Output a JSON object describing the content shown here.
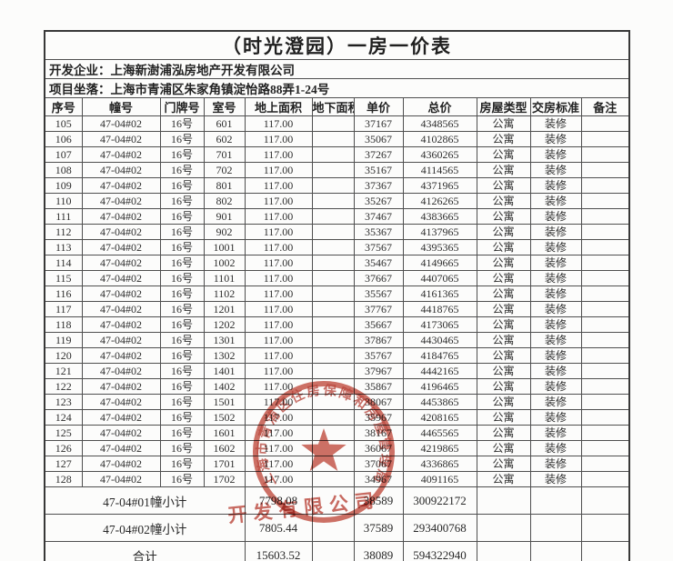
{
  "title": "（时光澄园）一房一价表",
  "info_rows": [
    {
      "label": "开发企业：",
      "value": "上海新澍浦泓房地产开发有限公司"
    },
    {
      "label": "项目坐落：",
      "value": "上海市青浦区朱家角镇淀怡路88弄1-24号"
    }
  ],
  "table": {
    "headers": [
      "序号",
      "幢号",
      "门牌号",
      "室号",
      "地上面积",
      "地下面积",
      "单价",
      "总价",
      "房屋类型",
      "交房标准",
      "备注"
    ],
    "rows": [
      [
        "105",
        "47-04#02",
        "16号",
        "601",
        "117.00",
        "",
        "37167",
        "4348565",
        "公寓",
        "装修",
        ""
      ],
      [
        "106",
        "47-04#02",
        "16号",
        "602",
        "117.00",
        "",
        "35067",
        "4102865",
        "公寓",
        "装修",
        ""
      ],
      [
        "107",
        "47-04#02",
        "16号",
        "701",
        "117.00",
        "",
        "37267",
        "4360265",
        "公寓",
        "装修",
        ""
      ],
      [
        "108",
        "47-04#02",
        "16号",
        "702",
        "117.00",
        "",
        "35167",
        "4114565",
        "公寓",
        "装修",
        ""
      ],
      [
        "109",
        "47-04#02",
        "16号",
        "801",
        "117.00",
        "",
        "37367",
        "4371965",
        "公寓",
        "装修",
        ""
      ],
      [
        "110",
        "47-04#02",
        "16号",
        "802",
        "117.00",
        "",
        "35267",
        "4126265",
        "公寓",
        "装修",
        ""
      ],
      [
        "111",
        "47-04#02",
        "16号",
        "901",
        "117.00",
        "",
        "37467",
        "4383665",
        "公寓",
        "装修",
        ""
      ],
      [
        "112",
        "47-04#02",
        "16号",
        "902",
        "117.00",
        "",
        "35367",
        "4137965",
        "公寓",
        "装修",
        ""
      ],
      [
        "113",
        "47-04#02",
        "16号",
        "1001",
        "117.00",
        "",
        "37567",
        "4395365",
        "公寓",
        "装修",
        ""
      ],
      [
        "114",
        "47-04#02",
        "16号",
        "1002",
        "117.00",
        "",
        "35467",
        "4149665",
        "公寓",
        "装修",
        ""
      ],
      [
        "115",
        "47-04#02",
        "16号",
        "1101",
        "117.00",
        "",
        "37667",
        "4407065",
        "公寓",
        "装修",
        ""
      ],
      [
        "116",
        "47-04#02",
        "16号",
        "1102",
        "117.00",
        "",
        "35567",
        "4161365",
        "公寓",
        "装修",
        ""
      ],
      [
        "117",
        "47-04#02",
        "16号",
        "1201",
        "117.00",
        "",
        "37767",
        "4418765",
        "公寓",
        "装修",
        ""
      ],
      [
        "118",
        "47-04#02",
        "16号",
        "1202",
        "117.00",
        "",
        "35667",
        "4173065",
        "公寓",
        "装修",
        ""
      ],
      [
        "119",
        "47-04#02",
        "16号",
        "1301",
        "117.00",
        "",
        "37867",
        "4430465",
        "公寓",
        "装修",
        ""
      ],
      [
        "120",
        "47-04#02",
        "16号",
        "1302",
        "117.00",
        "",
        "35767",
        "4184765",
        "公寓",
        "装修",
        ""
      ],
      [
        "121",
        "47-04#02",
        "16号",
        "1401",
        "117.00",
        "",
        "37967",
        "4442165",
        "公寓",
        "装修",
        ""
      ],
      [
        "122",
        "47-04#02",
        "16号",
        "1402",
        "117.00",
        "",
        "35867",
        "4196465",
        "公寓",
        "装修",
        ""
      ],
      [
        "123",
        "47-04#02",
        "16号",
        "1501",
        "117.00",
        "",
        "38067",
        "4453865",
        "公寓",
        "装修",
        ""
      ],
      [
        "124",
        "47-04#02",
        "16号",
        "1502",
        "117.00",
        "",
        "35967",
        "4208165",
        "公寓",
        "装修",
        ""
      ],
      [
        "125",
        "47-04#02",
        "16号",
        "1601",
        "117.00",
        "",
        "38167",
        "4465565",
        "公寓",
        "装修",
        ""
      ],
      [
        "126",
        "47-04#02",
        "16号",
        "1602",
        "117.00",
        "",
        "36067",
        "4219865",
        "公寓",
        "装修",
        ""
      ],
      [
        "127",
        "47-04#02",
        "16号",
        "1701",
        "117.00",
        "",
        "37067",
        "4336865",
        "公寓",
        "装修",
        ""
      ],
      [
        "128",
        "47-04#02",
        "16号",
        "1702",
        "117.00",
        "",
        "34967",
        "4091165",
        "公寓",
        "装修",
        ""
      ]
    ],
    "summary_rows": [
      {
        "label": "47-04#01幢小计",
        "above_area": "7798.08",
        "below_area": "",
        "unit_price": "38589",
        "total_price": "300922172",
        "house_type": "",
        "delivery": "",
        "remark": ""
      },
      {
        "label": "47-04#02幢小计",
        "above_area": "7805.44",
        "below_area": "",
        "unit_price": "37589",
        "total_price": "293400768",
        "house_type": "",
        "delivery": "",
        "remark": ""
      },
      {
        "label": "合计",
        "above_area": "15603.52",
        "below_area": "",
        "unit_price": "38089",
        "total_price": "594322940",
        "house_type": "",
        "delivery": "",
        "remark": ""
      }
    ]
  },
  "seal": {
    "arc_text": "上海市青浦区住房保障和房屋管理局",
    "fragment_text": "开发有限公司",
    "star_icon": "five-pointed-star",
    "color": "#bf3b2d"
  }
}
